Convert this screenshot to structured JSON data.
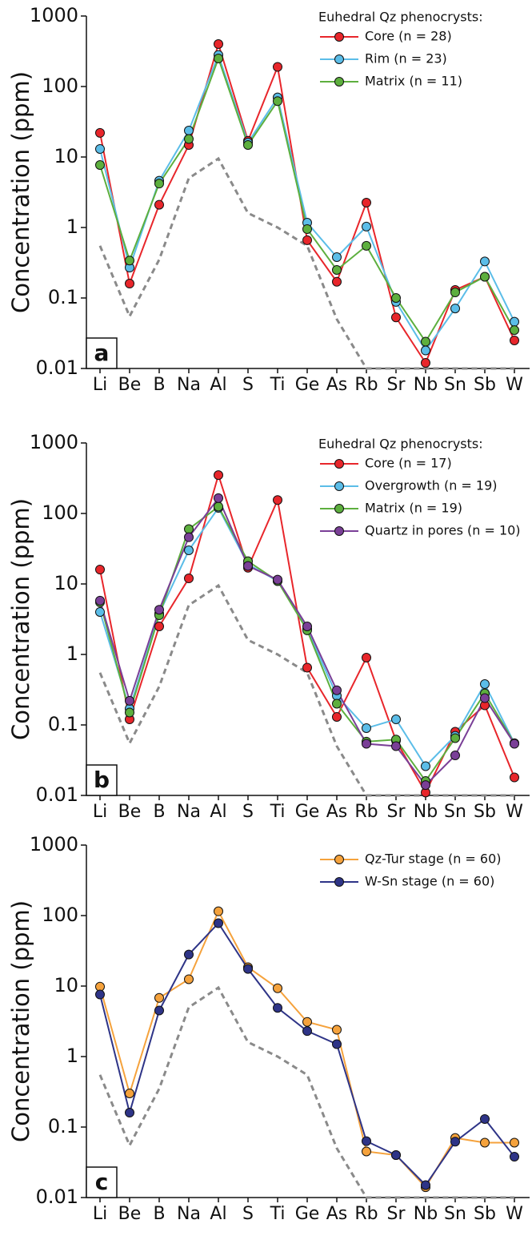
{
  "chart_data": [
    {
      "type": "line",
      "panel_label": "a",
      "y_label": "Concentration (ppm)",
      "log_scale": true,
      "grid": false,
      "legend_title": "Euhedral Qz phenocrysts:",
      "legend_position": "upper-right",
      "categories": [
        "Li",
        "Be",
        "B",
        "Na",
        "Al",
        "S",
        "Ti",
        "Ge",
        "As",
        "Rb",
        "Sr",
        "Nb",
        "Sn",
        "Sb",
        "W"
      ],
      "ylim": [
        0.01,
        1000
      ],
      "yticks": [
        1000,
        100,
        10,
        1,
        0.1,
        0.01
      ],
      "series": [
        {
          "color": "#8a8a8a",
          "dashed": true,
          "values": [
            0.55,
            0.055,
            0.35,
            5,
            9.5,
            1.6,
            1,
            0.55,
            0.05,
            0.01,
            0.01,
            0.01,
            0.01,
            0.01,
            0.01
          ]
        },
        {
          "name": "Core (n = 28)",
          "color": "#e8262b",
          "values": [
            22,
            0.16,
            2.1,
            14.8,
            400,
            17,
            190,
            0.66,
            0.17,
            2.25,
            0.053,
            0.012,
            0.13,
            0.2,
            0.025
          ]
        },
        {
          "name": "Rim (n = 23)",
          "color": "#5bbde8",
          "values": [
            13,
            0.27,
            4.6,
            23.7,
            280,
            16,
            70,
            1.17,
            0.38,
            1.03,
            0.088,
            0.018,
            0.071,
            0.33,
            0.046
          ]
        },
        {
          "name": "Matrix (n = 11)",
          "color": "#5daf3e",
          "values": [
            7.7,
            0.34,
            4.2,
            18,
            250,
            14.8,
            62,
            0.95,
            0.25,
            0.55,
            0.1,
            0.024,
            0.12,
            0.2,
            0.035
          ]
        }
      ]
    },
    {
      "type": "line",
      "panel_label": "b",
      "y_label": "Concentration (ppm)",
      "log_scale": true,
      "grid": false,
      "legend_title": "Euhedral Qz phenocrysts:",
      "legend_position": "upper-right",
      "categories": [
        "Li",
        "Be",
        "B",
        "Na",
        "Al",
        "S",
        "Ti",
        "Ge",
        "As",
        "Rb",
        "Sr",
        "Nb",
        "Sn",
        "Sb",
        "W"
      ],
      "ylim": [
        0.01,
        1000
      ],
      "yticks": [
        1000,
        100,
        10,
        1,
        0.1,
        0.01
      ],
      "series": [
        {
          "color": "#8a8a8a",
          "dashed": true,
          "values": [
            0.55,
            0.055,
            0.35,
            5,
            9.5,
            1.6,
            1,
            0.55,
            0.05,
            0.01,
            0.01,
            0.01,
            0.01,
            0.01,
            0.01
          ]
        },
        {
          "name": "Core (n = 17)",
          "color": "#e8262b",
          "values": [
            16,
            0.12,
            2.5,
            12,
            350,
            17,
            155,
            0.65,
            0.13,
            0.9,
            0.06,
            0.011,
            0.08,
            0.19,
            0.018
          ]
        },
        {
          "name": "Overgrowth (n = 19)",
          "color": "#5bbde8",
          "values": [
            4,
            0.17,
            3.8,
            30,
            120,
            19,
            11,
            2.3,
            0.26,
            0.09,
            0.12,
            0.026,
            0.07,
            0.38,
            0.055
          ]
        },
        {
          "name": "Matrix (n = 19)",
          "color": "#5daf3e",
          "values": [
            5.5,
            0.15,
            3.6,
            60,
            125,
            21,
            11,
            2.2,
            0.2,
            0.058,
            0.062,
            0.016,
            0.065,
            0.28,
            0.055
          ]
        },
        {
          "name": "Quartz in pores (n = 10)",
          "color": "#7a3f97",
          "values": [
            5.8,
            0.22,
            4.3,
            46,
            165,
            18,
            11.5,
            2.5,
            0.31,
            0.054,
            0.05,
            0.014,
            0.037,
            0.24,
            0.054
          ]
        }
      ]
    },
    {
      "type": "line",
      "panel_label": "c",
      "y_label": "Concentration (ppm)",
      "log_scale": true,
      "grid": false,
      "legend_position": "upper-right",
      "categories": [
        "Li",
        "Be",
        "B",
        "Na",
        "Al",
        "S",
        "Ti",
        "Ge",
        "As",
        "Rb",
        "Sr",
        "Nb",
        "Sn",
        "Sb",
        "W"
      ],
      "ylim": [
        0.01,
        1000
      ],
      "yticks": [
        1000,
        100,
        10,
        1,
        0.1,
        0.01
      ],
      "series": [
        {
          "color": "#8a8a8a",
          "dashed": true,
          "values": [
            0.55,
            0.055,
            0.35,
            5,
            9.5,
            1.6,
            1,
            0.55,
            0.05,
            0.01,
            0.01,
            0.01,
            0.01,
            0.01,
            0.01
          ]
        },
        {
          "name": "Qz-Tur stage (n = 60)",
          "color": "#f5a23c",
          "values": [
            9.8,
            0.3,
            6.8,
            12.5,
            115,
            18.5,
            9.3,
            3.1,
            2.4,
            0.045,
            0.04,
            0.014,
            0.07,
            0.06,
            0.06
          ]
        },
        {
          "name": "W-Sn stage (n = 60)",
          "color": "#2e3487",
          "values": [
            7.6,
            0.16,
            4.5,
            28,
            78,
            17.5,
            4.9,
            2.3,
            1.5,
            0.063,
            0.04,
            0.015,
            0.062,
            0.13,
            0.038
          ]
        }
      ]
    }
  ]
}
